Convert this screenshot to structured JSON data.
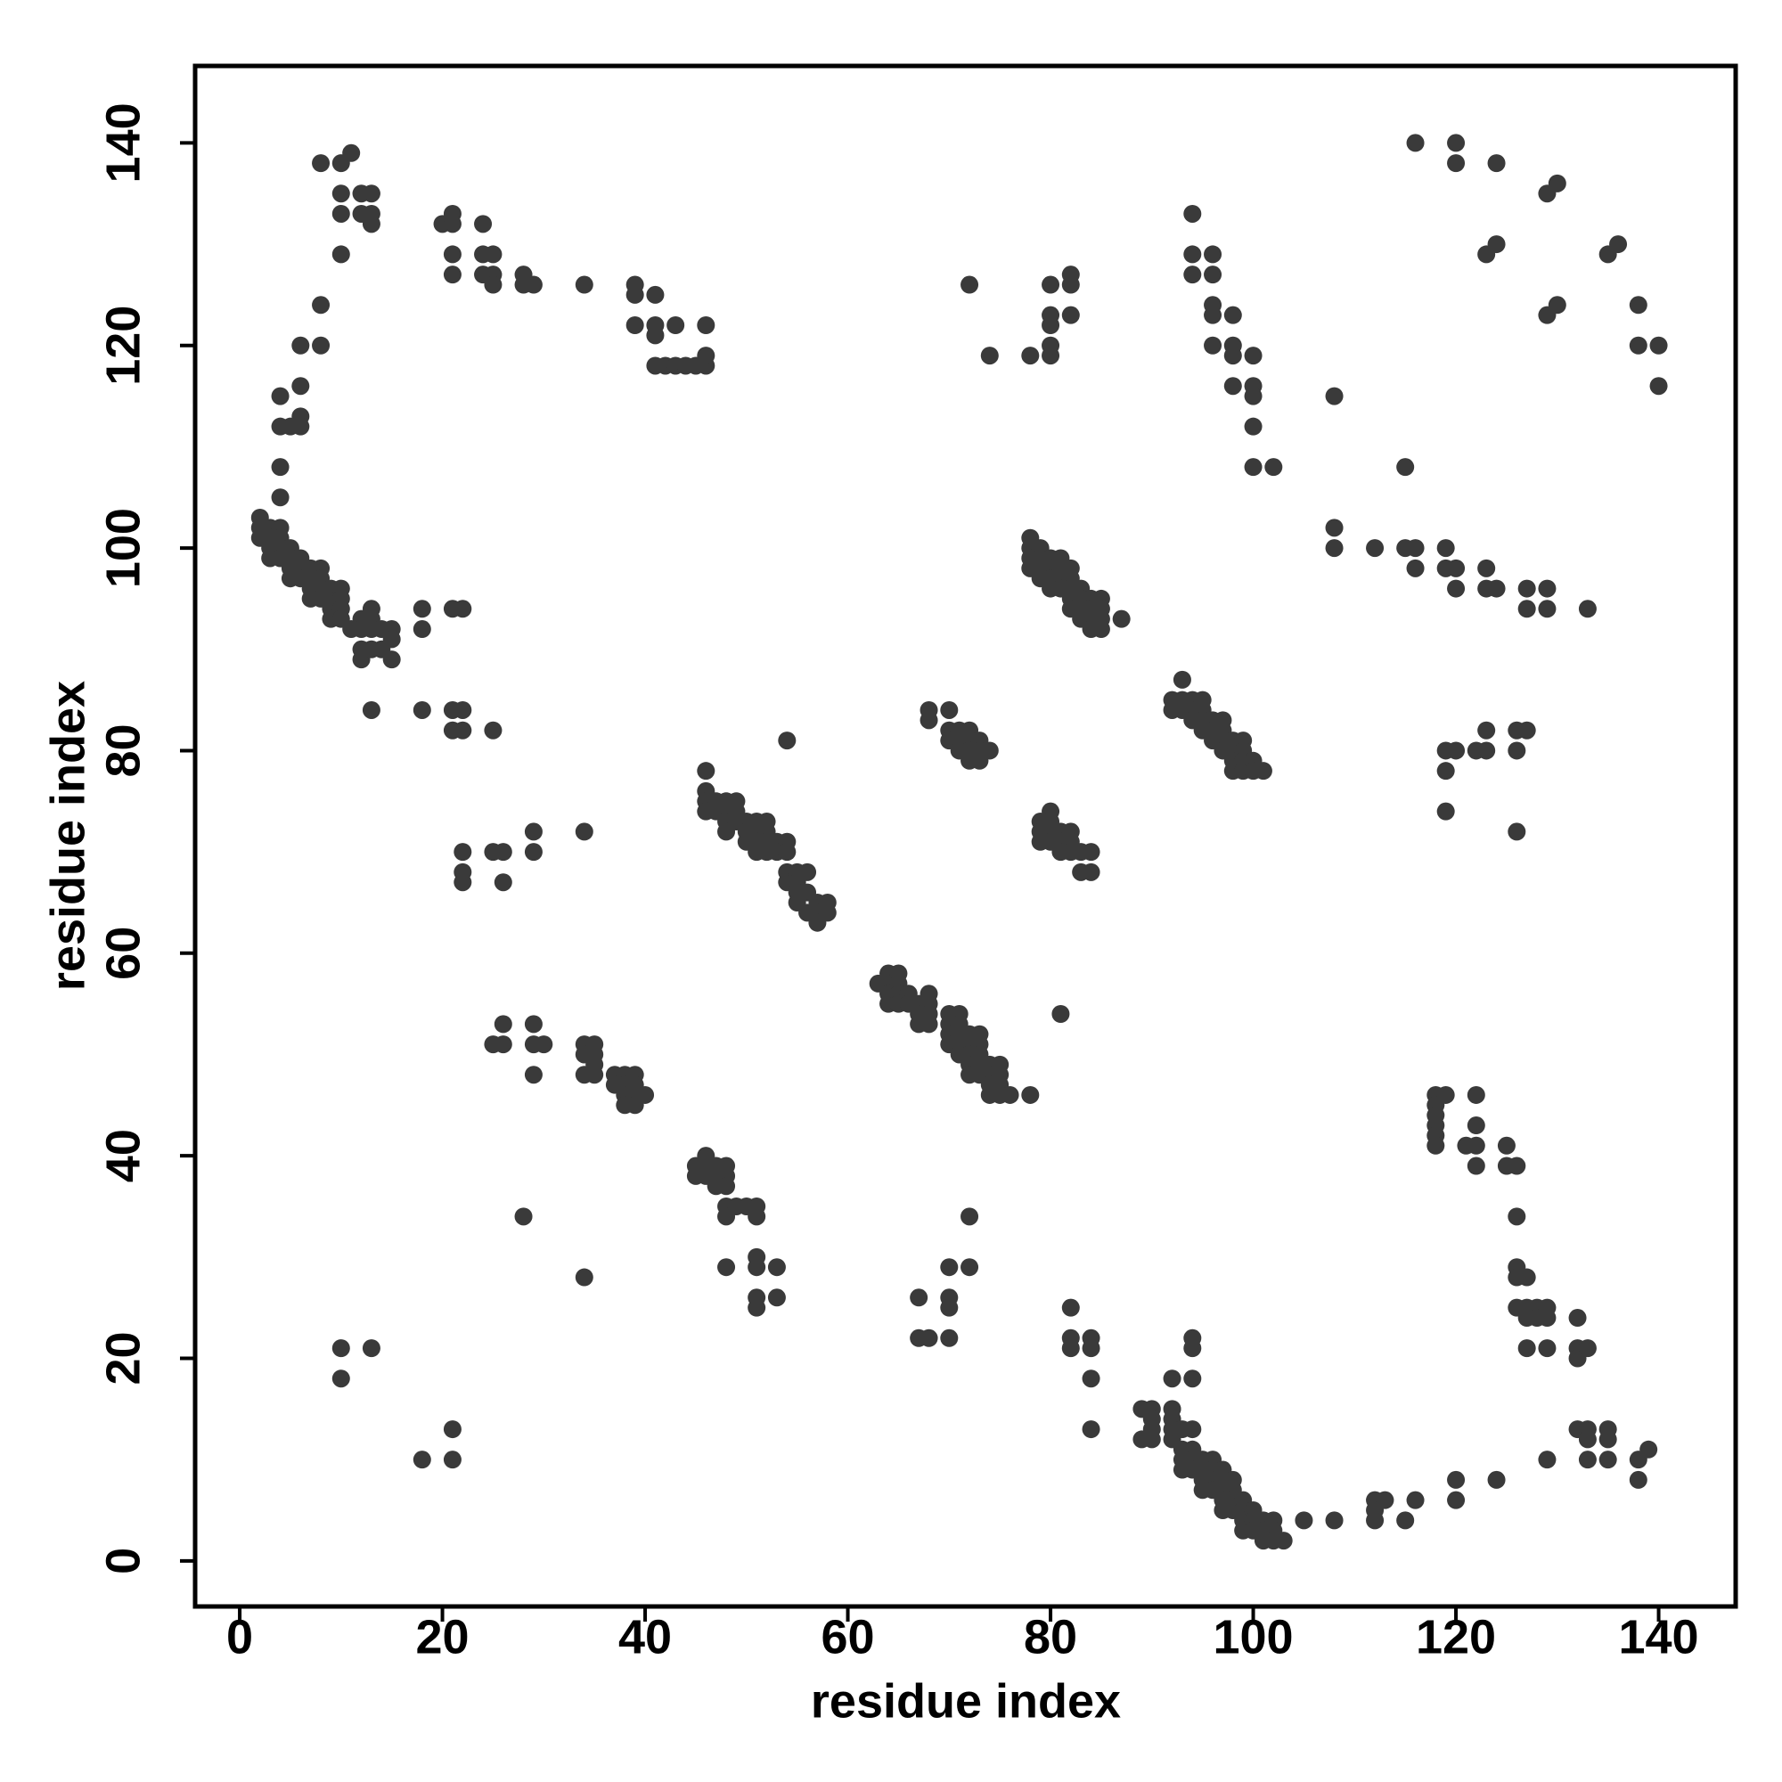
{
  "chart_data": {
    "type": "scatter",
    "xlabel": "residue index",
    "ylabel": "residue index",
    "color": "#3a3a3a",
    "xlim": [
      -4.4,
      147.6
    ],
    "ylim": [
      -4.5,
      147.6
    ],
    "xticks": [
      0,
      20,
      40,
      60,
      80,
      100,
      120,
      140
    ],
    "yticks": [
      0,
      20,
      40,
      60,
      80,
      100,
      120,
      140
    ],
    "x": [
      2,
      2,
      2,
      3,
      3,
      3,
      3,
      4,
      4,
      4,
      4,
      5,
      5,
      5,
      5,
      6,
      6,
      6,
      7,
      7,
      7,
      7,
      8,
      8,
      8,
      8,
      9,
      9,
      9,
      9,
      10,
      10,
      10,
      10,
      11,
      12,
      12,
      12,
      12,
      13,
      13,
      13,
      13,
      14,
      14,
      15,
      15,
      15,
      10,
      11,
      8,
      10,
      10,
      12,
      13,
      12,
      13,
      13,
      10,
      8,
      8,
      6,
      6,
      6,
      5,
      6,
      4,
      4,
      4,
      4,
      18,
      18,
      21,
      22,
      13,
      18,
      21,
      22,
      21,
      22,
      25,
      20,
      21,
      21,
      24,
      21,
      21,
      24,
      25,
      24,
      25,
      25,
      28,
      28,
      29,
      34,
      39,
      39,
      41,
      39,
      41,
      41,
      43,
      41,
      42,
      43,
      44,
      45,
      46,
      46,
      46,
      22,
      22,
      22,
      25,
      26,
      26,
      29,
      29,
      34,
      26,
      25,
      26,
      29,
      29,
      30,
      29,
      34,
      35,
      34,
      35,
      34,
      35,
      35,
      37,
      37,
      38,
      38,
      38,
      39,
      39,
      39,
      39,
      38,
      40,
      28,
      34,
      10,
      13,
      10,
      18,
      21,
      21,
      45,
      45,
      46,
      46,
      46,
      47,
      47,
      47,
      48,
      48,
      48,
      48,
      48,
      49,
      50,
      51,
      51,
      51,
      51,
      51,
      51,
      48,
      53,
      53,
      46,
      46,
      46,
      46,
      47,
      47,
      48,
      48,
      48,
      48,
      49,
      49,
      49,
      50,
      50,
      50,
      51,
      51,
      51,
      51,
      52,
      52,
      52,
      52,
      53,
      53,
      54,
      54,
      54,
      54,
      55,
      55,
      55,
      55,
      56,
      56,
      56,
      57,
      57,
      57,
      58,
      58,
      54,
      63,
      64,
      64,
      64,
      64,
      65,
      65,
      65,
      65,
      66,
      66,
      67,
      67,
      67,
      68,
      68,
      68,
      68,
      70,
      70,
      70,
      70,
      71,
      71,
      71,
      71,
      71,
      72,
      72,
      72,
      72,
      72,
      73,
      73,
      73,
      73,
      73,
      74,
      74,
      74,
      74,
      75,
      75,
      75,
      75,
      76,
      78,
      68,
      68,
      70,
      70,
      70,
      71,
      71,
      71,
      72,
      72,
      72,
      72,
      73,
      73,
      73,
      74,
      72,
      74,
      81,
      67,
      67,
      68,
      70,
      70,
      70,
      70,
      72,
      72,
      78,
      80,
      80,
      80,
      80,
      80,
      82,
      82,
      82,
      78,
      78,
      78,
      78,
      79,
      79,
      79,
      79,
      80,
      80,
      80,
      80,
      81,
      81,
      81,
      81,
      82,
      82,
      82,
      82,
      82,
      83,
      83,
      83,
      83,
      84,
      84,
      84,
      84,
      85,
      85,
      85,
      85,
      87,
      79,
      79,
      79,
      80,
      80,
      80,
      80,
      81,
      81,
      81,
      82,
      82,
      82,
      83,
      83,
      84,
      84,
      82,
      82,
      82,
      84,
      84,
      84,
      84,
      93,
      92,
      92,
      93,
      93,
      94,
      94,
      94,
      95,
      95,
      95,
      95,
      96,
      96,
      96,
      97,
      97,
      97,
      97,
      98,
      98,
      98,
      98,
      99,
      99,
      99,
      99,
      100,
      100,
      101,
      94,
      94,
      94,
      96,
      96,
      96,
      96,
      96,
      98,
      98,
      98,
      98,
      100,
      100,
      100,
      100,
      100,
      102,
      89,
      89,
      90,
      90,
      90,
      90,
      92,
      92,
      92,
      92,
      92,
      93,
      93,
      93,
      93,
      94,
      94,
      94,
      94,
      94,
      94,
      94,
      95,
      95,
      95,
      95,
      96,
      96,
      96,
      96,
      97,
      97,
      97,
      97,
      97,
      98,
      98,
      98,
      98,
      99,
      99,
      99,
      99,
      100,
      100,
      100,
      101,
      101,
      101,
      102,
      102,
      102,
      103,
      105,
      108,
      112,
      112,
      112,
      113,
      115,
      116,
      108,
      108,
      108,
      112,
      115,
      115,
      116,
      116,
      119,
      119,
      120,
      120,
      123,
      123,
      124,
      127,
      127,
      129,
      129,
      133,
      116,
      120,
      120,
      124,
      123,
      124,
      129,
      130,
      129,
      130,
      135,
      136,
      138,
      138,
      140,
      140,
      119,
      119,
      119,
      120,
      122,
      123,
      123,
      126,
      127,
      126,
      126,
      118,
      118,
      118,
      118,
      118,
      118,
      119,
      121,
      122,
      122,
      122,
      122,
      125,
      125,
      126,
      126,
      126,
      126,
      127,
      126,
      127,
      127,
      128,
      128,
      129,
      129,
      127,
      129,
      132,
      132,
      132,
      133,
      129,
      132,
      133,
      133,
      135,
      135,
      133,
      135,
      138,
      139,
      138,
      124,
      120,
      120
    ],
    "values": [
      103,
      102,
      101,
      102,
      101,
      100,
      99,
      102,
      101,
      100,
      99,
      100,
      99,
      98,
      97,
      99,
      98,
      97,
      98,
      97,
      96,
      95,
      98,
      97,
      96,
      95,
      96,
      95,
      94,
      93,
      96,
      95,
      94,
      93,
      92,
      93,
      92,
      90,
      89,
      94,
      93,
      92,
      90,
      92,
      90,
      92,
      91,
      89,
      138,
      139,
      138,
      135,
      133,
      135,
      135,
      133,
      133,
      132,
      129,
      124,
      120,
      120,
      116,
      113,
      112,
      112,
      115,
      112,
      108,
      105,
      94,
      92,
      94,
      94,
      84,
      84,
      84,
      84,
      82,
      82,
      82,
      132,
      133,
      132,
      132,
      129,
      127,
      129,
      129,
      127,
      127,
      126,
      127,
      126,
      126,
      126,
      126,
      125,
      125,
      122,
      122,
      121,
      122,
      118,
      118,
      118,
      118,
      118,
      118,
      119,
      122,
      70,
      68,
      67,
      70,
      70,
      67,
      72,
      70,
      72,
      53,
      51,
      51,
      53,
      51,
      51,
      48,
      51,
      51,
      50,
      50,
      48,
      49,
      48,
      48,
      47,
      48,
      47,
      46,
      48,
      47,
      46,
      45,
      45,
      46,
      34,
      28,
      21,
      21,
      18,
      10,
      13,
      10,
      39,
      38,
      40,
      39,
      38,
      39,
      38,
      37,
      39,
      38,
      37,
      35,
      34,
      35,
      35,
      35,
      34,
      30,
      29,
      26,
      25,
      29,
      29,
      26,
      78,
      76,
      75,
      74,
      75,
      74,
      75,
      74,
      73,
      72,
      75,
      74,
      73,
      73,
      72,
      71,
      73,
      72,
      71,
      70,
      73,
      72,
      71,
      70,
      71,
      70,
      71,
      70,
      68,
      67,
      68,
      67,
      66,
      65,
      68,
      66,
      64,
      65,
      64,
      63,
      65,
      64,
      81,
      57,
      58,
      57,
      56,
      55,
      58,
      57,
      56,
      55,
      56,
      55,
      55,
      54,
      53,
      56,
      55,
      54,
      53,
      54,
      53,
      52,
      51,
      54,
      53,
      52,
      51,
      50,
      52,
      51,
      50,
      49,
      48,
      52,
      51,
      50,
      49,
      48,
      49,
      48,
      47,
      46,
      49,
      48,
      47,
      46,
      46,
      46,
      84,
      83,
      84,
      82,
      81,
      82,
      81,
      80,
      82,
      81,
      80,
      79,
      81,
      80,
      79,
      80,
      126,
      119,
      54,
      26,
      22,
      22,
      29,
      26,
      25,
      22,
      34,
      29,
      119,
      119,
      120,
      122,
      123,
      126,
      127,
      126,
      123,
      101,
      100,
      99,
      98,
      100,
      99,
      98,
      97,
      99,
      98,
      97,
      96,
      99,
      98,
      97,
      96,
      98,
      97,
      96,
      95,
      94,
      96,
      95,
      94,
      93,
      95,
      94,
      93,
      92,
      95,
      94,
      93,
      92,
      93,
      73,
      72,
      71,
      74,
      73,
      72,
      71,
      72,
      71,
      70,
      72,
      71,
      70,
      70,
      68,
      70,
      68,
      25,
      22,
      21,
      22,
      21,
      18,
      13,
      87,
      85,
      84,
      85,
      84,
      85,
      84,
      83,
      85,
      84,
      83,
      82,
      83,
      82,
      81,
      83,
      82,
      81,
      80,
      81,
      80,
      79,
      78,
      81,
      80,
      79,
      78,
      79,
      78,
      78,
      133,
      129,
      127,
      129,
      127,
      124,
      123,
      120,
      123,
      120,
      119,
      116,
      119,
      116,
      115,
      112,
      108,
      108,
      15,
      12,
      15,
      14,
      13,
      12,
      18,
      15,
      14,
      13,
      12,
      13,
      11,
      10,
      9,
      22,
      21,
      18,
      13,
      11,
      10,
      9,
      10,
      9,
      8,
      7,
      10,
      9,
      8,
      7,
      9,
      8,
      7,
      6,
      5,
      8,
      7,
      6,
      5,
      6,
      5,
      4,
      3,
      5,
      4,
      3,
      4,
      3,
      2,
      4,
      3,
      2,
      2,
      4,
      4,
      6,
      5,
      4,
      6,
      4,
      6,
      115,
      102,
      100,
      100,
      108,
      100,
      100,
      98,
      100,
      98,
      98,
      96,
      98,
      96,
      96,
      96,
      94,
      96,
      94,
      94,
      140,
      140,
      138,
      138,
      129,
      130,
      135,
      136,
      123,
      124,
      129,
      130,
      124,
      120,
      120,
      116,
      80,
      78,
      74,
      80,
      80,
      82,
      80,
      82,
      82,
      80,
      72,
      46,
      45,
      44,
      43,
      42,
      41,
      46,
      41,
      46,
      43,
      41,
      39,
      41,
      39,
      39,
      34,
      29,
      28,
      28,
      25,
      25,
      24,
      25,
      24,
      25,
      24,
      21,
      21,
      24,
      21,
      20,
      21,
      10,
      13,
      13,
      12,
      13,
      12,
      10,
      10,
      10,
      11,
      8,
      8,
      8,
      6
    ]
  }
}
